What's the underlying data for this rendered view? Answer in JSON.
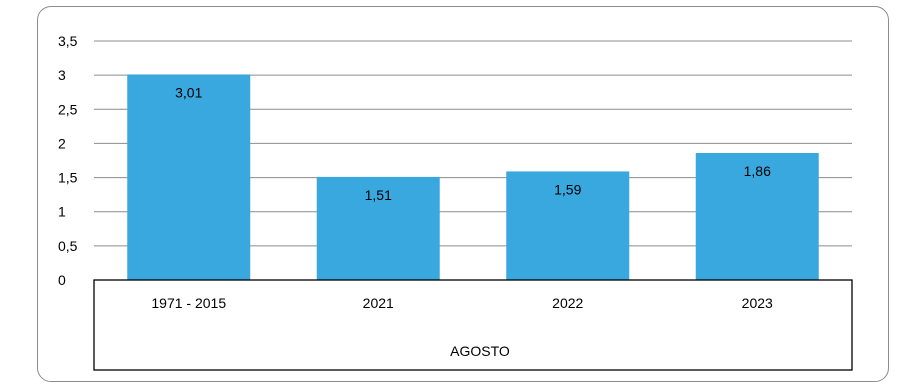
{
  "chart_data": {
    "type": "bar",
    "title": "",
    "xlabel": "AGOSTO",
    "ylabel": "",
    "categories": [
      "1971 - 2015",
      "2021",
      "2022",
      "2023"
    ],
    "values": [
      3.01,
      1.51,
      1.59,
      1.86
    ],
    "data_labels": [
      "3,01",
      "1,51",
      "1,59",
      "1,86"
    ],
    "ylim": [
      0,
      3.5
    ],
    "yticks": [
      0,
      0.5,
      1,
      1.5,
      2,
      2.5,
      3,
      3.5
    ],
    "ytick_labels": [
      "0",
      "0,5",
      "1",
      "1,5",
      "2",
      "2,5",
      "3",
      "3,5"
    ],
    "grid": true,
    "legend": "none",
    "bar_color": "#38a8df",
    "grid_color": "#8c8c8c"
  }
}
